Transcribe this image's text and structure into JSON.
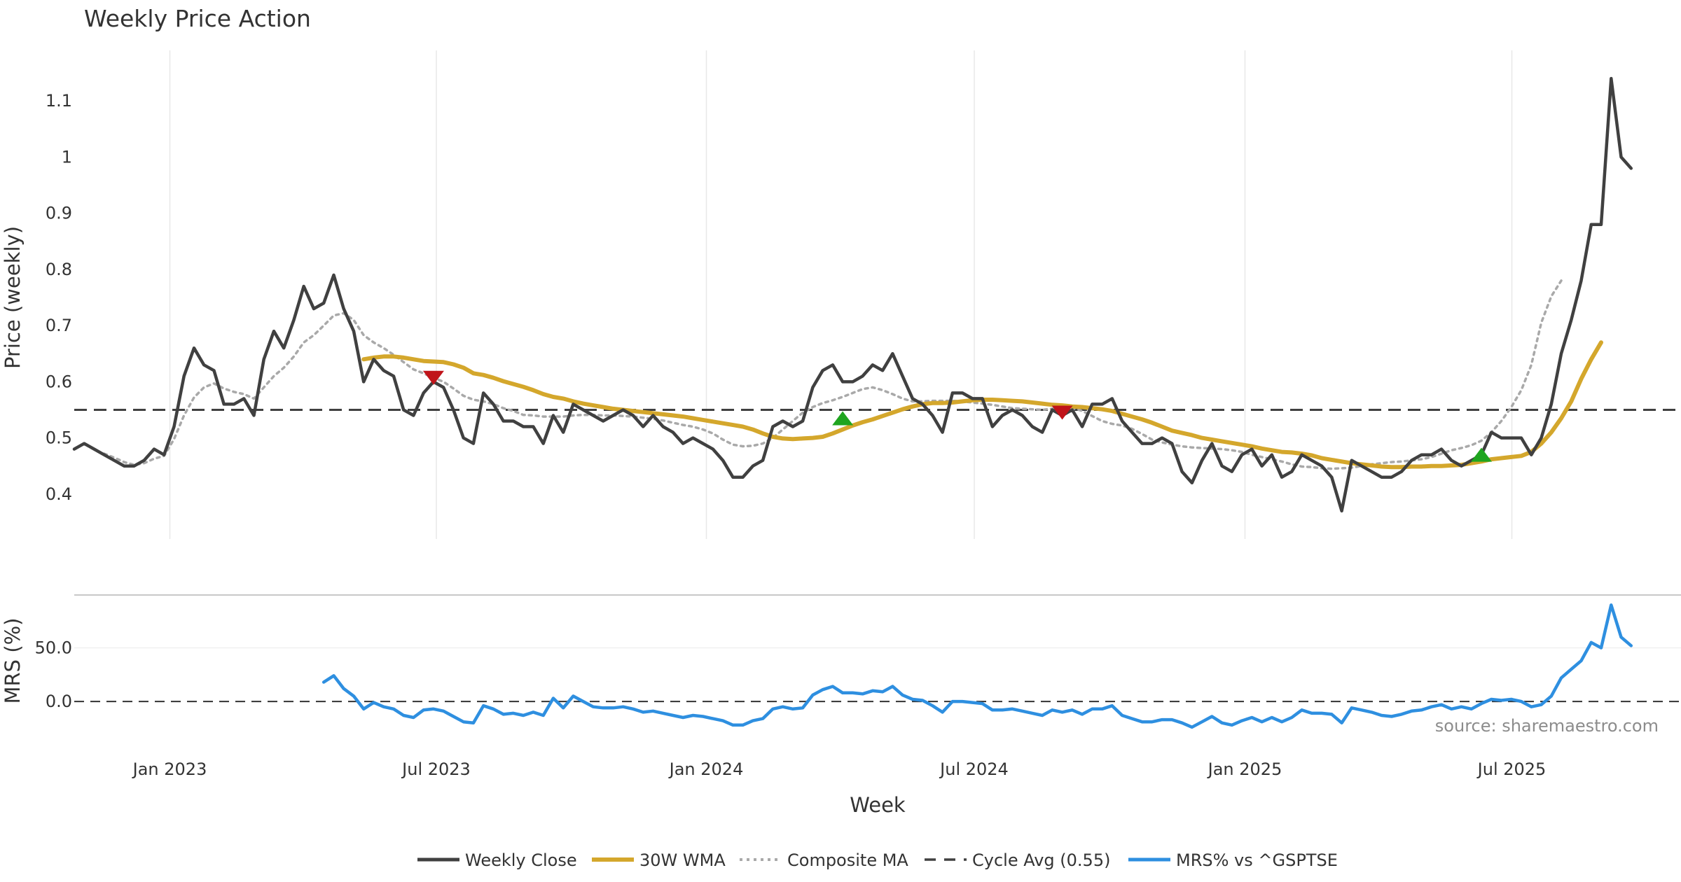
{
  "colors": {
    "close": "#404040",
    "wma": "#d4a72c",
    "composite": "#a9a9a9",
    "cycle": "#404040",
    "mrs": "#2e8fe0",
    "buy": "#1fa51f",
    "sell": "#c0141a",
    "grid": "#e8e8e8",
    "divider": "#c8c8c8"
  },
  "chart_data": {
    "type": "line",
    "title": "Weekly Price Action",
    "xlabel": "Week",
    "source": "source: sharemaestro.com",
    "x_ticks": [
      "Jan 2023",
      "Jul 2023",
      "Jan 2024",
      "Jul 2024",
      "Jan 2025",
      "Jul 2025"
    ],
    "x_range": [
      0,
      161
    ],
    "panels": [
      {
        "name": "price",
        "ylabel": "Price (weekly)",
        "ylim": [
          0.32,
          1.19
        ],
        "y_ticks": [
          0.4,
          0.5,
          0.6,
          0.7,
          0.8,
          0.9,
          1.0,
          1.1
        ],
        "y_tick_labels": [
          "0.4",
          "0.5",
          "0.6",
          "0.7",
          "0.8",
          "0.9",
          "1",
          "1.1"
        ],
        "series": [
          {
            "name": "Weekly Close",
            "key": "close",
            "start": 0,
            "values": [
              0.48,
              0.49,
              0.48,
              0.47,
              0.46,
              0.45,
              0.45,
              0.46,
              0.48,
              0.47,
              0.52,
              0.61,
              0.66,
              0.63,
              0.62,
              0.56,
              0.56,
              0.57,
              0.54,
              0.64,
              0.69,
              0.66,
              0.71,
              0.77,
              0.73,
              0.74,
              0.79,
              0.73,
              0.69,
              0.6,
              0.64,
              0.62,
              0.61,
              0.55,
              0.54,
              0.58,
              0.6,
              0.59,
              0.55,
              0.5,
              0.49,
              0.58,
              0.56,
              0.53,
              0.53,
              0.52,
              0.52,
              0.49,
              0.54,
              0.51,
              0.56,
              0.55,
              0.54,
              0.53,
              0.54,
              0.55,
              0.54,
              0.52,
              0.54,
              0.52,
              0.51,
              0.49,
              0.5,
              0.49,
              0.48,
              0.46,
              0.43,
              0.43,
              0.45,
              0.46,
              0.52,
              0.53,
              0.52,
              0.53,
              0.59,
              0.62,
              0.63,
              0.6,
              0.6,
              0.61,
              0.63,
              0.62,
              0.65,
              0.61,
              0.57,
              0.56,
              0.54,
              0.51,
              0.58,
              0.58,
              0.57,
              0.57,
              0.52,
              0.54,
              0.55,
              0.54,
              0.52,
              0.51,
              0.55,
              0.54,
              0.55,
              0.52,
              0.56,
              0.56,
              0.57,
              0.53,
              0.51,
              0.49,
              0.49,
              0.5,
              0.49,
              0.44,
              0.42,
              0.46,
              0.49,
              0.45,
              0.44,
              0.47,
              0.48,
              0.45,
              0.47,
              0.43,
              0.44,
              0.47,
              0.46,
              0.45,
              0.43,
              0.37,
              0.46,
              0.45,
              0.44,
              0.43,
              0.43,
              0.44,
              0.46,
              0.47,
              0.47,
              0.48,
              0.46,
              0.45,
              0.46,
              0.47,
              0.51,
              0.5,
              0.5,
              0.5,
              0.47,
              0.5,
              0.56,
              0.65,
              0.71,
              0.78,
              0.88,
              0.88,
              1.14,
              1.0,
              0.98
            ]
          },
          {
            "name": "30W WMA",
            "key": "wma",
            "start": 29,
            "values": [
              0.64,
              0.643,
              0.645,
              0.645,
              0.643,
              0.64,
              0.637,
              0.636,
              0.635,
              0.631,
              0.625,
              0.615,
              0.612,
              0.607,
              0.601,
              0.596,
              0.591,
              0.585,
              0.578,
              0.573,
              0.57,
              0.565,
              0.561,
              0.558,
              0.555,
              0.552,
              0.55,
              0.548,
              0.546,
              0.544,
              0.542,
              0.54,
              0.538,
              0.535,
              0.532,
              0.529,
              0.526,
              0.523,
              0.52,
              0.515,
              0.508,
              0.502,
              0.499,
              0.498,
              0.499,
              0.5,
              0.502,
              0.508,
              0.515,
              0.522,
              0.528,
              0.533,
              0.539,
              0.545,
              0.551,
              0.556,
              0.56,
              0.562,
              0.562,
              0.563,
              0.565,
              0.567,
              0.568,
              0.568,
              0.567,
              0.566,
              0.565,
              0.563,
              0.561,
              0.559,
              0.558,
              0.556,
              0.555,
              0.553,
              0.551,
              0.548,
              0.543,
              0.538,
              0.533,
              0.527,
              0.52,
              0.513,
              0.509,
              0.505,
              0.5,
              0.497,
              0.494,
              0.491,
              0.488,
              0.485,
              0.481,
              0.478,
              0.475,
              0.474,
              0.472,
              0.469,
              0.464,
              0.461,
              0.458,
              0.455,
              0.453,
              0.451,
              0.449,
              0.448,
              0.448,
              0.449,
              0.449,
              0.45,
              0.45,
              0.451,
              0.452,
              0.455,
              0.458,
              0.462,
              0.464,
              0.466,
              0.468,
              0.475,
              0.49,
              0.51,
              0.535,
              0.565,
              0.605,
              0.64,
              0.67
            ]
          },
          {
            "name": "Composite MA",
            "key": "composite",
            "start": 3,
            "values": [
              0.472,
              0.465,
              0.457,
              0.452,
              0.455,
              0.463,
              0.468,
              0.498,
              0.54,
              0.572,
              0.59,
              0.597,
              0.588,
              0.582,
              0.578,
              0.57,
              0.59,
              0.61,
              0.625,
              0.645,
              0.67,
              0.683,
              0.7,
              0.718,
              0.722,
              0.71,
              0.683,
              0.67,
              0.66,
              0.648,
              0.635,
              0.622,
              0.615,
              0.607,
              0.6,
              0.588,
              0.575,
              0.568,
              0.565,
              0.56,
              0.553,
              0.548,
              0.541,
              0.54,
              0.538,
              0.538,
              0.538,
              0.54,
              0.541,
              0.541,
              0.54,
              0.54,
              0.539,
              0.538,
              0.536,
              0.534,
              0.531,
              0.527,
              0.523,
              0.52,
              0.515,
              0.508,
              0.497,
              0.488,
              0.485,
              0.486,
              0.49,
              0.5,
              0.515,
              0.53,
              0.545,
              0.555,
              0.562,
              0.567,
              0.573,
              0.58,
              0.587,
              0.59,
              0.585,
              0.578,
              0.57,
              0.565,
              0.565,
              0.566,
              0.566,
              0.566,
              0.565,
              0.563,
              0.561,
              0.559,
              0.556,
              0.553,
              0.552,
              0.551,
              0.55,
              0.552,
              0.555,
              0.554,
              0.548,
              0.539,
              0.53,
              0.525,
              0.522,
              0.516,
              0.507,
              0.497,
              0.492,
              0.488,
              0.485,
              0.483,
              0.482,
              0.481,
              0.48,
              0.478,
              0.475,
              0.47,
              0.466,
              0.462,
              0.458,
              0.453,
              0.449,
              0.448,
              0.446,
              0.445,
              0.446,
              0.447,
              0.45,
              0.453,
              0.455,
              0.457,
              0.458,
              0.46,
              0.462,
              0.466,
              0.472,
              0.478,
              0.482,
              0.487,
              0.495,
              0.51,
              0.53,
              0.555,
              0.585,
              0.63,
              0.705,
              0.752,
              0.78
            ]
          }
        ],
        "reference_line": {
          "name": "Cycle Avg (0.55)",
          "key": "cycle",
          "value": 0.55
        },
        "signals": [
          {
            "type": "sell",
            "index": 36,
            "value": 0.607
          },
          {
            "type": "buy",
            "index": 77,
            "value": 0.535
          },
          {
            "type": "sell",
            "index": 99,
            "value": 0.545
          },
          {
            "type": "buy",
            "index": 141,
            "value": 0.47
          }
        ]
      },
      {
        "name": "mrs",
        "ylabel": "MRS (%)",
        "ylim": [
          -30,
          98
        ],
        "y_ticks": [
          0,
          50
        ],
        "y_tick_labels": [
          "0.0",
          "50.0"
        ],
        "zero_line": 0,
        "series": [
          {
            "name": "MRS% vs ^GSPTSE",
            "key": "mrs",
            "start": 25,
            "values": [
              18,
              24,
              12,
              5,
              -7,
              -1,
              -5,
              -7,
              -13,
              -15,
              -8,
              -7,
              -9,
              -14,
              -19,
              -20,
              -4,
              -7,
              -12,
              -11,
              -13,
              -10,
              -13,
              3,
              -6,
              5,
              0,
              -5,
              -6,
              -6,
              -5,
              -7,
              -10,
              -9,
              -11,
              -13,
              -15,
              -13,
              -14,
              -16,
              -18,
              -22,
              -22,
              -18,
              -16,
              -7,
              -5,
              -7,
              -6,
              6,
              11,
              14,
              8,
              8,
              7,
              10,
              9,
              14,
              6,
              2,
              1,
              -4,
              -10,
              0,
              0,
              -1,
              -2,
              -8,
              -8,
              -7,
              -9,
              -11,
              -13,
              -8,
              -10,
              -8,
              -12,
              -7,
              -7,
              -4,
              -13,
              -16,
              -19,
              -19,
              -17,
              -17,
              -20,
              -24,
              -19,
              -14,
              -20,
              -22,
              -18,
              -15,
              -19,
              -15,
              -19,
              -15,
              -8,
              -11,
              -11,
              -12,
              -20,
              -6,
              -8,
              -10,
              -13,
              -14,
              -12,
              -9,
              -8,
              -5,
              -3,
              -7,
              -5,
              -7,
              -2,
              2,
              1,
              2,
              0,
              -5,
              -3,
              5,
              22,
              30,
              38,
              55,
              50,
              90,
              60,
              52
            ]
          }
        ]
      }
    ],
    "legend": [
      {
        "label": "Weekly Close",
        "key": "close",
        "style": "solid"
      },
      {
        "label": "30W WMA",
        "key": "wma",
        "style": "solid-thick"
      },
      {
        "label": "Composite MA",
        "key": "composite",
        "style": "dotted"
      },
      {
        "label": "Cycle Avg (0.55)",
        "key": "cycle",
        "style": "dashed"
      },
      {
        "label": "MRS% vs ^GSPTSE",
        "key": "mrs",
        "style": "solid"
      }
    ]
  }
}
